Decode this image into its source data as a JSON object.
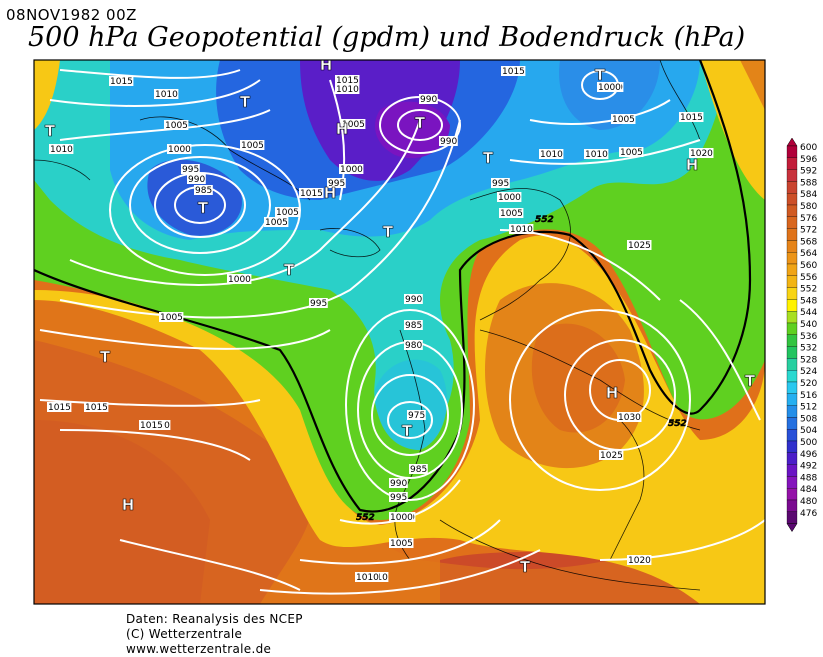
{
  "header": {
    "datetime": "08NOV1982 00Z",
    "title": "500 hPa Geopotential (gpdm) und Bodendruck (hPa)"
  },
  "legend": {
    "levels": [
      "600",
      "596",
      "592",
      "588",
      "584",
      "580",
      "576",
      "572",
      "568",
      "564",
      "560",
      "556",
      "552",
      "548",
      "544",
      "540",
      "536",
      "532",
      "528",
      "524",
      "520",
      "516",
      "512",
      "508",
      "504",
      "500",
      "496",
      "492",
      "488",
      "484",
      "480",
      "476"
    ],
    "colors": [
      "#b0003a",
      "#c21d3a",
      "#c8323c",
      "#c9442f",
      "#cc4f28",
      "#d05a22",
      "#d8661e",
      "#df731a",
      "#e68419",
      "#ec9418",
      "#f0a416",
      "#f2b414",
      "#f8d414",
      "#fff200",
      "#a8df22",
      "#5fd020",
      "#32c440",
      "#22c460",
      "#27cfa0",
      "#2ad8d0",
      "#2ac8ef",
      "#25aff0",
      "#248ee8",
      "#2570e0",
      "#2850d8",
      "#3030cc",
      "#4b1ec8",
      "#6a14c4",
      "#8414bc",
      "#9412a8",
      "#7a0a90",
      "#5a0870"
    ]
  },
  "map": {
    "pressure_centers": [
      {
        "label": "H",
        "name": "high-center"
      },
      {
        "label": "H",
        "name": "high-center"
      },
      {
        "label": "H",
        "name": "high-center"
      },
      {
        "label": "H",
        "name": "high-center"
      },
      {
        "label": "H",
        "name": "high-center"
      },
      {
        "label": "H",
        "name": "high-center"
      },
      {
        "label": "T",
        "name": "low-center"
      },
      {
        "label": "T",
        "name": "low-center"
      },
      {
        "label": "T",
        "name": "low-center"
      },
      {
        "label": "T",
        "name": "low-center"
      },
      {
        "label": "T",
        "name": "low-center"
      },
      {
        "label": "T",
        "name": "low-center"
      },
      {
        "label": "T",
        "name": "low-center"
      },
      {
        "label": "T",
        "name": "low-center"
      },
      {
        "label": "T",
        "name": "low-center"
      },
      {
        "label": "T",
        "name": "low-center"
      },
      {
        "label": "T",
        "name": "low-center"
      },
      {
        "label": "T",
        "name": "low-center"
      }
    ],
    "isobar_labels": [
      "1015",
      "1010",
      "1005",
      "1000",
      "995",
      "990",
      "985",
      "1015",
      "1010",
      "1005",
      "1000",
      "995",
      "990",
      "975",
      "985",
      "990",
      "995",
      "1000",
      "1005",
      "1010",
      "1015",
      "1020",
      "1015",
      "1010",
      "1005",
      "1000",
      "995",
      "990",
      "1005",
      "1010",
      "1015",
      "1010",
      "1005",
      "1000",
      "995",
      "990",
      "985",
      "980",
      "1015",
      "1010",
      "1005",
      "1000",
      "1020",
      "1025",
      "1030",
      "1025",
      "1020",
      "1015",
      "1010",
      "1005",
      "1000",
      "1015",
      "1010",
      "1005",
      "1000",
      "1005",
      "1010",
      "1015",
      "1020",
      "1025",
      "1030",
      "1010",
      "1005",
      "1015"
    ],
    "contour_labels": [
      "552",
      "552",
      "552"
    ]
  },
  "footer": {
    "line1": "Daten: Reanalysis des NCEP",
    "line2": "(C) Wetterzentrale",
    "line3": "www.wetterzentrale.de"
  }
}
